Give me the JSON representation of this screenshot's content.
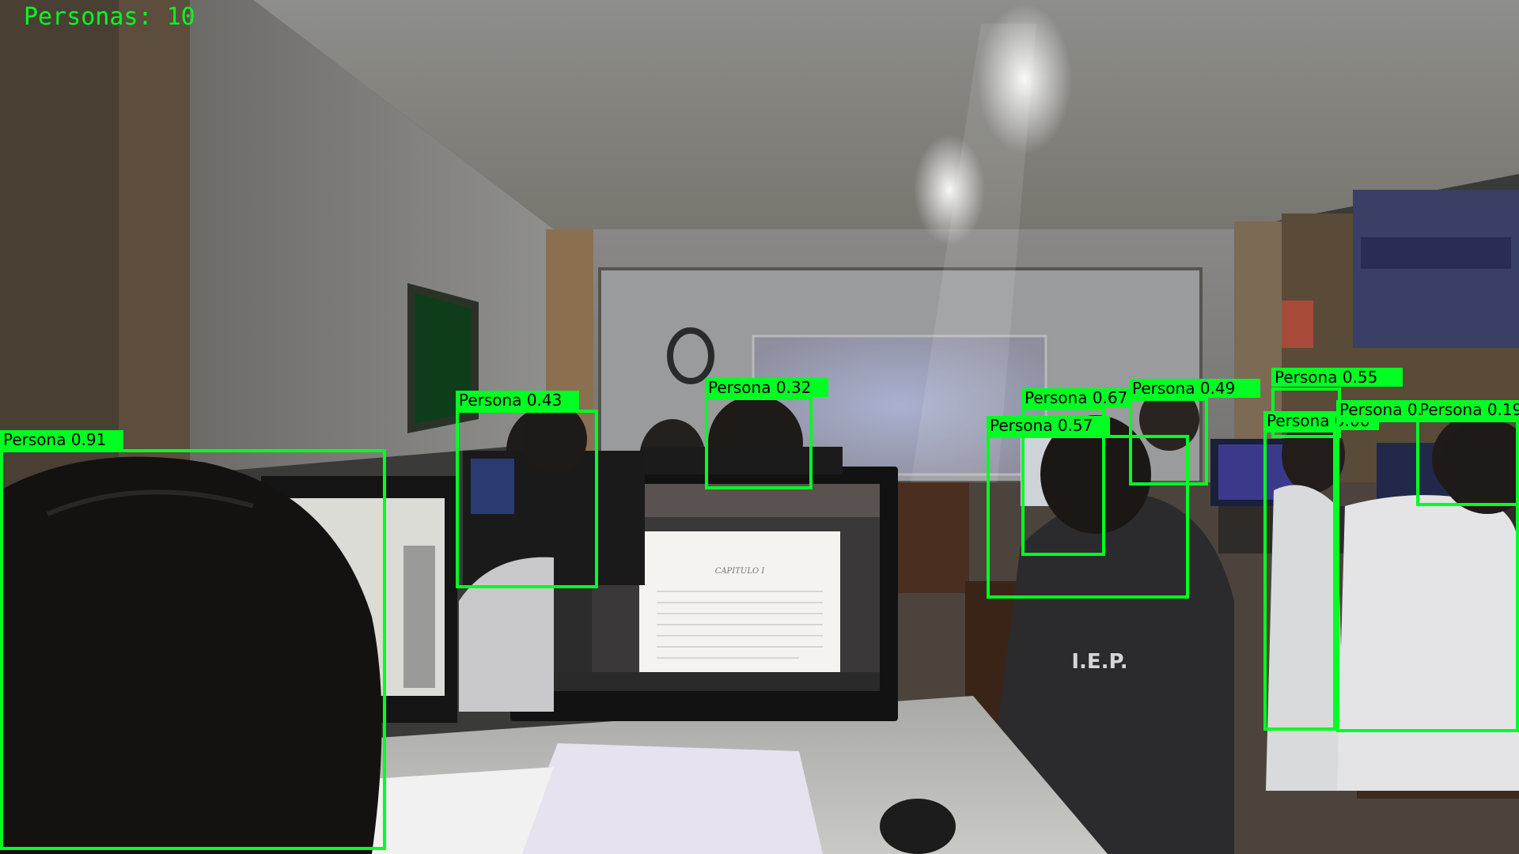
{
  "overlay": {
    "count_label": "Personas: 10",
    "box_color": "#00ff22"
  },
  "detections": [
    {
      "label": "Persona 0.91"
    },
    {
      "label": "Persona 0.43"
    },
    {
      "label": "Persona 0.32"
    },
    {
      "label": "Persona 0.67"
    },
    {
      "label": "Persona 0.57"
    },
    {
      "label": "Persona 0.49"
    },
    {
      "label": "Persona 0.55"
    },
    {
      "label": "Persona 0.66"
    },
    {
      "label": "Persona 0.19"
    },
    {
      "label": "Persona 0."
    }
  ],
  "scene": {
    "shirt_text": "I.E.P.",
    "document_heading": "CAPITULO I"
  }
}
